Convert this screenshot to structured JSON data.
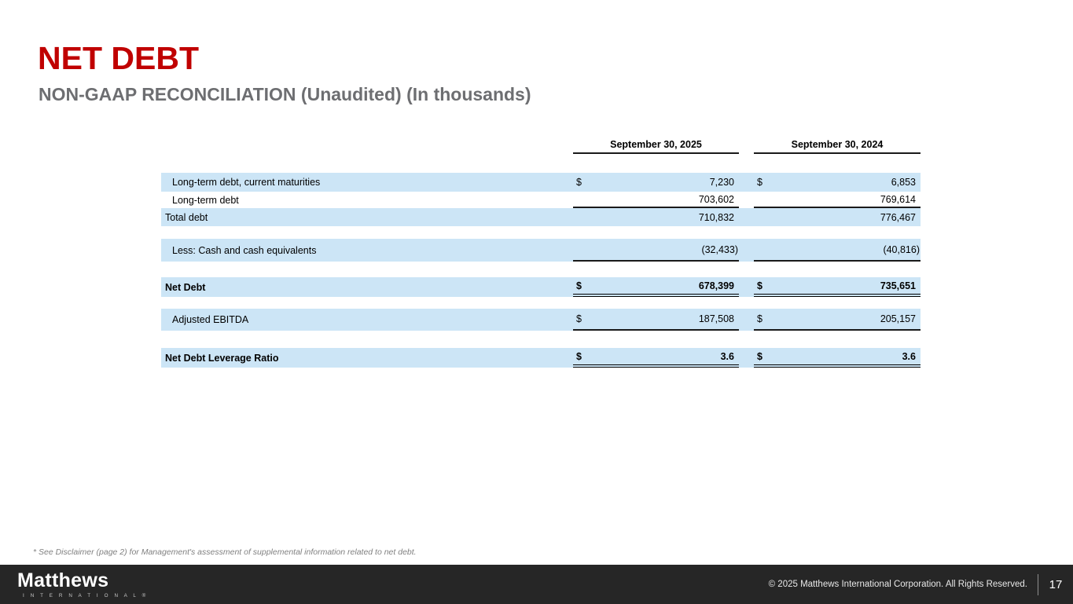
{
  "slide": {
    "title": "NET DEBT",
    "subtitle": "NON-GAAP RECONCILIATION (Unaudited) (In thousands)",
    "footnote": "* See Disclaimer (page 2) for Management's assessment of supplemental information related to net debt.",
    "colors": {
      "accent_red": "#C00000",
      "subtitle_gray": "#6D6E71",
      "row_blue": "#CCE5F6",
      "footer_bg": "#262626"
    }
  },
  "table": {
    "columns": [
      "September 30, 2025",
      "September 30, 2024"
    ],
    "rows": [
      {
        "label": "Long-term debt, current maturities",
        "cur_2025": "$",
        "val_2025": "7,230",
        "cur_2024": "$",
        "val_2024": "6,853"
      },
      {
        "label": "Long-term debt",
        "cur_2025": "",
        "val_2025": "703,602",
        "cur_2024": "",
        "val_2024": "769,614"
      },
      {
        "label": "Total debt",
        "cur_2025": "",
        "val_2025": "710,832",
        "cur_2024": "",
        "val_2024": "776,467"
      },
      {
        "label": "Less: Cash and cash equivalents",
        "cur_2025": "",
        "val_2025": "(32,433)",
        "cur_2024": "",
        "val_2024": "(40,816)"
      },
      {
        "label": "Net Debt",
        "cur_2025": "$",
        "val_2025": "678,399",
        "cur_2024": "$",
        "val_2024": "735,651"
      },
      {
        "label": "Adjusted EBITDA",
        "cur_2025": "$",
        "val_2025": "187,508",
        "cur_2024": "$",
        "val_2024": "205,157"
      },
      {
        "label": "Net Debt Leverage Ratio",
        "cur_2025": "$",
        "val_2025": "3.6",
        "cur_2024": "$",
        "val_2024": "3.6"
      }
    ]
  },
  "footer": {
    "logo_primary": "Matthews",
    "logo_secondary": "I N T E R N A T I O N A L ®",
    "copyright": "© 2025 Matthews International Corporation. All Rights Reserved.",
    "page_number": "17"
  }
}
